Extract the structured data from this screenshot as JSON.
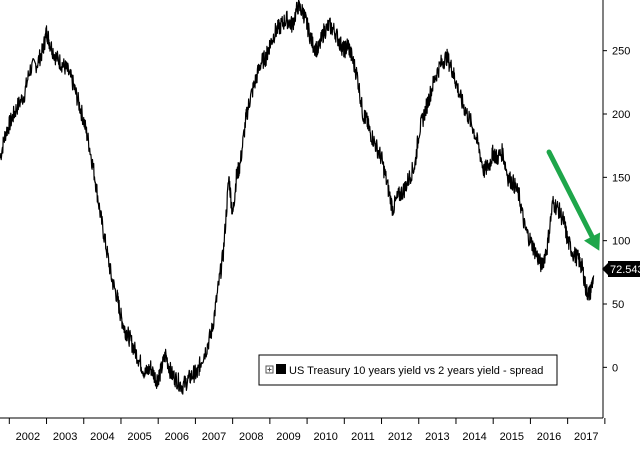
{
  "chart_data": {
    "type": "line",
    "title": "",
    "xlabel": "",
    "ylabel": "",
    "x_ticks": [
      "2002",
      "2003",
      "2004",
      "2005",
      "2006",
      "2007",
      "2008",
      "2009",
      "2010",
      "2011",
      "2012",
      "2013",
      "2014",
      "2015",
      "2016",
      "2017"
    ],
    "y_ticks": [
      "0",
      "50",
      "100",
      "150",
      "200",
      "250"
    ],
    "xlim": [
      2001.75,
      2017.95
    ],
    "ylim": [
      -40,
      290
    ],
    "grid": false,
    "legend_position": "bottom-right",
    "last_value_label": "72.543",
    "series": [
      {
        "name": "US Treasury 10 years yield vs 2 years yield - spread",
        "color": "#000000",
        "x": [
          2001.75,
          2001.9,
          2002.05,
          2002.2,
          2002.4,
          2002.55,
          2002.75,
          2002.9,
          2003.0,
          2003.1,
          2003.25,
          2003.4,
          2003.55,
          2003.7,
          2003.85,
          2004.0,
          2004.15,
          2004.3,
          2004.45,
          2004.6,
          2004.75,
          2004.9,
          2005.0,
          2005.1,
          2005.2,
          2005.35,
          2005.5,
          2005.65,
          2005.8,
          2005.95,
          2006.05,
          2006.2,
          2006.35,
          2006.5,
          2006.65,
          2006.8,
          2006.95,
          2007.05,
          2007.15,
          2007.3,
          2007.45,
          2007.6,
          2007.75,
          2007.9,
          2008.0,
          2008.1,
          2008.2,
          2008.35,
          2008.45,
          2008.6,
          2008.75,
          2008.9,
          2009.0,
          2009.15,
          2009.3,
          2009.45,
          2009.6,
          2009.75,
          2009.9,
          2010.0,
          2010.15,
          2010.3,
          2010.45,
          2010.6,
          2010.75,
          2010.9,
          2011.0,
          2011.1,
          2011.2,
          2011.35,
          2011.5,
          2011.6,
          2011.7,
          2011.85,
          2012.0,
          2012.15,
          2012.3,
          2012.45,
          2012.6,
          2012.75,
          2012.9,
          2013.0,
          2013.15,
          2013.3,
          2013.45,
          2013.6,
          2013.75,
          2013.9,
          2014.0,
          2014.15,
          2014.3,
          2014.45,
          2014.6,
          2014.75,
          2014.9,
          2015.0,
          2015.1,
          2015.25,
          2015.4,
          2015.55,
          2015.7,
          2015.85,
          2016.0,
          2016.15,
          2016.3,
          2016.45,
          2016.6,
          2016.75,
          2016.9,
          2017.0,
          2017.15,
          2017.3,
          2017.4,
          2017.5,
          2017.6,
          2017.7
        ],
        "values": [
          165,
          185,
          195,
          205,
          215,
          235,
          240,
          250,
          265,
          255,
          245,
          240,
          235,
          225,
          210,
          195,
          175,
          150,
          120,
          95,
          70,
          55,
          40,
          30,
          25,
          15,
          5,
          -5,
          0,
          -10,
          -5,
          10,
          -5,
          -10,
          -15,
          -10,
          -5,
          -5,
          5,
          15,
          30,
          60,
          90,
          150,
          120,
          150,
          160,
          195,
          210,
          225,
          240,
          245,
          255,
          265,
          270,
          275,
          270,
          285,
          280,
          270,
          255,
          250,
          265,
          270,
          265,
          255,
          250,
          255,
          245,
          230,
          200,
          195,
          185,
          175,
          165,
          145,
          125,
          135,
          140,
          150,
          160,
          185,
          200,
          215,
          230,
          240,
          245,
          235,
          225,
          210,
          200,
          190,
          175,
          155,
          160,
          170,
          165,
          170,
          150,
          145,
          135,
          110,
          100,
          90,
          80,
          95,
          130,
          125,
          115,
          100,
          90,
          85,
          78,
          60,
          58,
          72.5
        ]
      }
    ],
    "annotations": [
      {
        "type": "arrow",
        "color": "#1ea64a",
        "from": [
          2016.5,
          170
        ],
        "to": [
          2017.85,
          92
        ]
      }
    ]
  }
}
